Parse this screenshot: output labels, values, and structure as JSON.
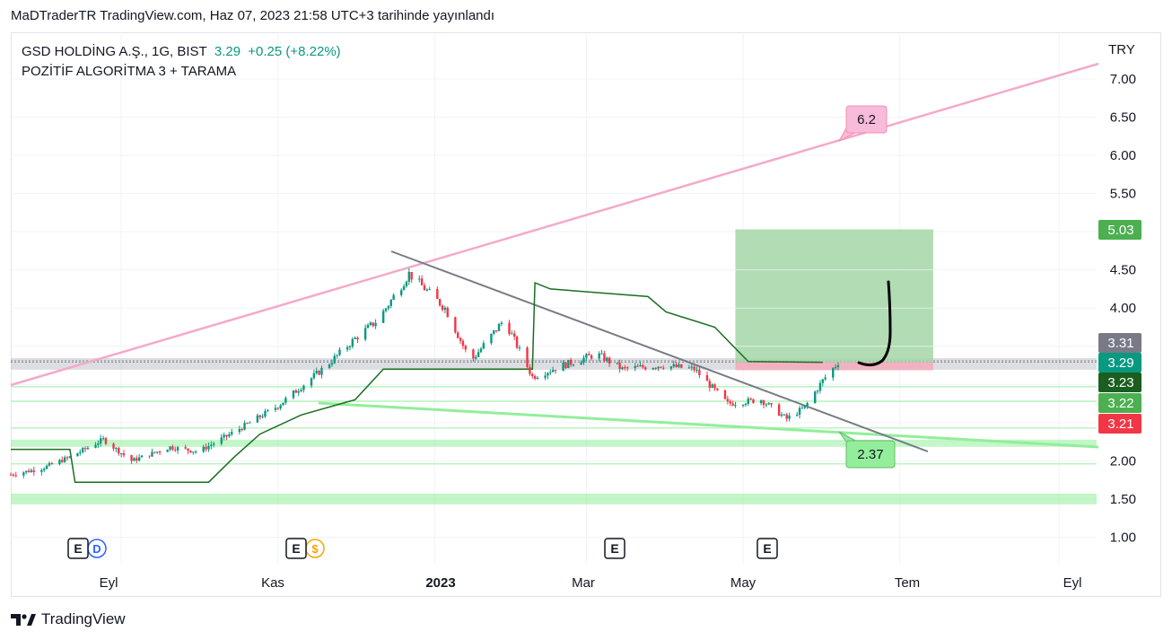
{
  "header": {
    "published": "MaDTraderTR TradingView.com, Haz 07, 2023 21:58 UTC+3 tarihinde yayınlandı"
  },
  "legend": {
    "symbol": "GSD HOLDİNG A.Ş., 1G, BIST",
    "last": "3.29",
    "change": "+0.25 (+8.22%)",
    "indicator": "POZİTİF ALGORİTMA 3 + TARAMA"
  },
  "currency": "TRY",
  "brand": {
    "name": "TradingView"
  },
  "colors": {
    "up": "#089981",
    "down": "#f23645",
    "pink": "#f5b7d4",
    "green_line": "#92ee9a",
    "dark_green": "#1b6e22",
    "trend_gray": "#787b86",
    "target_box": "#a5d6a7"
  },
  "chart_data": {
    "type": "candlestick",
    "x_axis": {
      "tick_labels": [
        "Eyl",
        "Kas",
        "2023",
        "Mar",
        "May",
        "Tem",
        "Eyl"
      ]
    },
    "y_axis": {
      "ticks": [
        1.0,
        1.5,
        2.0,
        2.5,
        3.0,
        3.5,
        4.0,
        4.5,
        5.0,
        5.5,
        6.0,
        6.5,
        7.0
      ],
      "tick_labels": [
        "1.00",
        "1.50",
        "2.00",
        "2.50",
        "3.00",
        "3.50",
        "4.00",
        "4.50",
        "5.00",
        "5.50",
        "6.00",
        "6.50",
        "7.00"
      ],
      "range": [
        0.65,
        7.55
      ]
    },
    "price_path": [
      [
        "2022-07-20",
        1.82
      ],
      [
        "2022-08-01",
        1.9
      ],
      [
        "2022-08-12",
        2.05
      ],
      [
        "2022-08-25",
        2.28
      ],
      [
        "2022-09-05",
        2.0
      ],
      [
        "2022-09-20",
        2.18
      ],
      [
        "2022-10-01",
        2.12
      ],
      [
        "2022-10-15",
        2.38
      ],
      [
        "2022-11-01",
        2.72
      ],
      [
        "2022-11-20",
        3.25
      ],
      [
        "2022-12-01",
        3.6
      ],
      [
        "2022-12-10",
        3.85
      ],
      [
        "2022-12-22",
        4.45
      ],
      [
        "2023-01-05",
        4.0
      ],
      [
        "2023-01-15",
        3.3
      ],
      [
        "2023-01-28",
        3.85
      ],
      [
        "2023-02-08",
        3.1
      ],
      [
        "2023-02-20",
        3.25
      ],
      [
        "2023-03-05",
        3.4
      ],
      [
        "2023-03-15",
        3.2
      ],
      [
        "2023-03-30",
        3.25
      ],
      [
        "2023-04-12",
        3.2
      ],
      [
        "2023-04-25",
        2.75
      ],
      [
        "2023-05-08",
        2.8
      ],
      [
        "2023-05-18",
        2.55
      ],
      [
        "2023-05-25",
        2.7
      ],
      [
        "2023-06-01",
        3.05
      ],
      [
        "2023-06-07",
        3.29
      ]
    ],
    "indicator_steps": [
      [
        "2022-07-20",
        2.15
      ],
      [
        "2022-08-12",
        2.15
      ],
      [
        "2022-08-14",
        1.72
      ],
      [
        "2022-10-05",
        1.72
      ],
      [
        "2022-10-15",
        2.05
      ],
      [
        "2022-10-25",
        2.35
      ],
      [
        "2022-11-10",
        2.6
      ],
      [
        "2022-12-01",
        2.8
      ],
      [
        "2022-12-12",
        3.2
      ],
      [
        "2023-02-08",
        3.2
      ],
      [
        "2023-02-09",
        4.33
      ],
      [
        "2023-02-15",
        4.25
      ],
      [
        "2023-03-25",
        4.15
      ],
      [
        "2023-04-01",
        3.95
      ],
      [
        "2023-04-20",
        3.75
      ],
      [
        "2023-05-03",
        3.3
      ],
      [
        "2023-06-01",
        3.29
      ]
    ],
    "horizontal_levels": [
      3.31,
      3.29,
      3.23,
      3.22,
      3.21,
      2.37,
      1.5
    ],
    "price_labels": [
      {
        "text": "5.03",
        "value": 5.03,
        "color": "#4caf50"
      },
      {
        "text": "3.31",
        "value": 3.31,
        "color": "#787b86"
      },
      {
        "text": "3.29",
        "value": 3.29,
        "color": "#089981"
      },
      {
        "text": "3.23",
        "value": 3.23,
        "color": "#1b5e20"
      },
      {
        "text": "3.22",
        "value": 3.22,
        "color": "#4caf50"
      },
      {
        "text": "3.21",
        "value": 3.21,
        "color": "#f23645"
      }
    ],
    "annotations": [
      {
        "text": "6.2",
        "value": 6.2
      },
      {
        "text": "2.37",
        "value": 2.37
      }
    ],
    "target_box": {
      "top": 5.03,
      "entry": 3.29,
      "stop": 3.21
    },
    "event_markers": [
      {
        "label": "E",
        "extra": "D"
      },
      {
        "label": "E",
        "extra": "$"
      },
      {
        "label": "E",
        "extra": ""
      },
      {
        "label": "E",
        "extra": ""
      }
    ]
  }
}
